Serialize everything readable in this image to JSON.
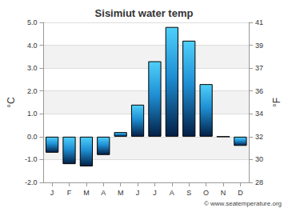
{
  "chart_data": {
    "type": "bar",
    "title": "Sisimiut water temp",
    "ylabel": "°C",
    "y2label": "°F",
    "categories": [
      "J",
      "F",
      "M",
      "A",
      "M",
      "J",
      "J",
      "A",
      "S",
      "O",
      "N",
      "D"
    ],
    "values": [
      -0.7,
      -1.2,
      -1.3,
      -0.8,
      0.2,
      1.4,
      3.3,
      4.8,
      4.2,
      2.3,
      0.0,
      -0.4
    ],
    "color": "#1e8fd4",
    "ylim": [
      -2,
      5
    ],
    "yticks": [
      {
        "value": -2,
        "label": "-2.0"
      },
      {
        "value": -1,
        "label": "-1.0"
      },
      {
        "value": 0,
        "label": "0.0"
      },
      {
        "value": 1,
        "label": "1.0"
      },
      {
        "value": 2,
        "label": "2.0"
      },
      {
        "value": 3,
        "label": "3.0"
      },
      {
        "value": 4,
        "label": "4.0"
      },
      {
        "value": 5,
        "label": "5.0"
      }
    ],
    "y2lim": [
      28.4,
      41
    ],
    "y2ticks": [
      {
        "value": 28.4,
        "label": "28"
      },
      {
        "value": 30.2,
        "label": "30"
      },
      32,
      {
        "value": 33.8,
        "label": "34"
      },
      {
        "value": 35.6,
        "label": "36"
      },
      {
        "value": 37.4,
        "label": "37"
      },
      {
        "value": 39.2,
        "label": "39"
      },
      41
    ],
    "grid": true,
    "annotations": [
      "© www.seatemperature.org"
    ]
  }
}
